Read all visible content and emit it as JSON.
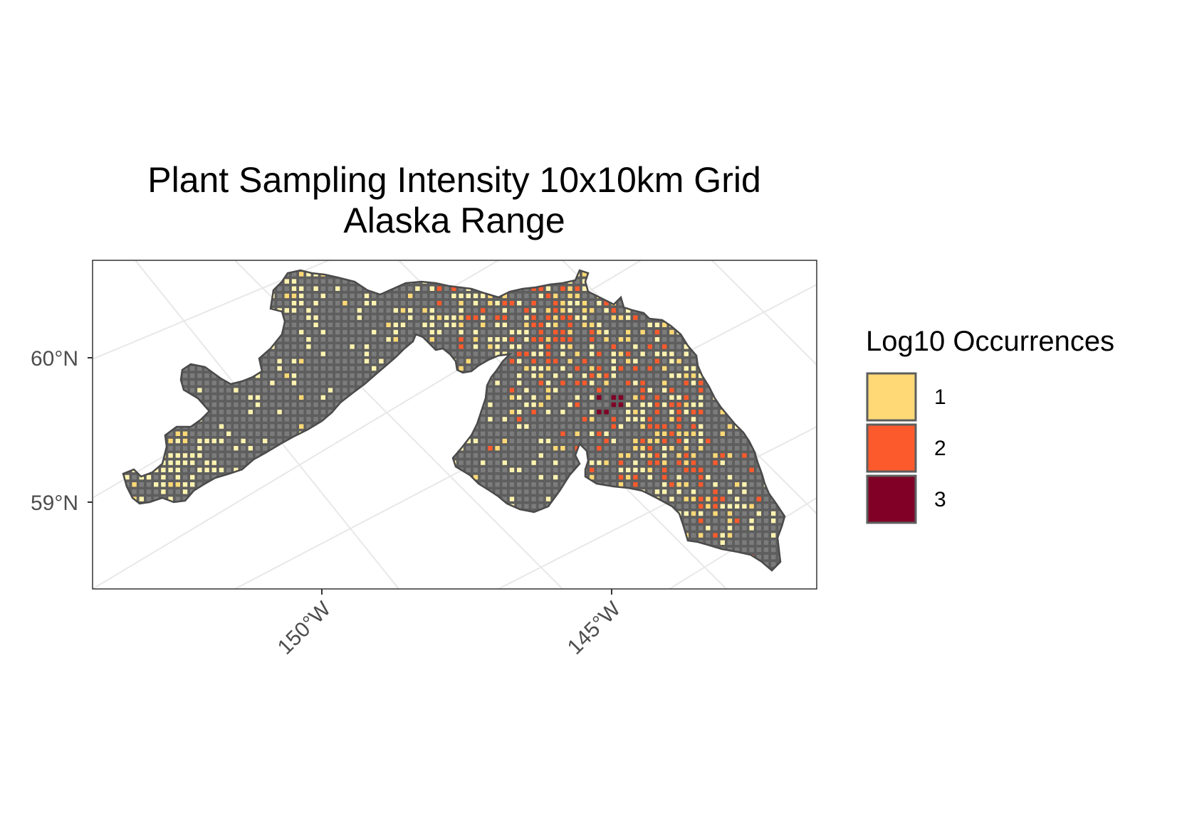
{
  "title_line1": "Plant Sampling Intensity 10x10km Grid",
  "title_line2": "Alaska Range",
  "x_axis": {
    "ticks": [
      "150°W",
      "145°W"
    ]
  },
  "y_axis": {
    "ticks": [
      "60°N",
      "59°N"
    ]
  },
  "legend": {
    "title": "Log10 Occurrences",
    "items": [
      {
        "label": "1",
        "color": "#FED976"
      },
      {
        "label": "2",
        "color": "#FC5A2C"
      },
      {
        "label": "3",
        "color": "#800026"
      }
    ]
  },
  "colors": {
    "land": "#5e5e5e",
    "empty_cell": "#7c7c7c",
    "graticule": "#e8e8e8",
    "panel_border": "#333333",
    "light_cell": "#FFF3B0"
  }
}
